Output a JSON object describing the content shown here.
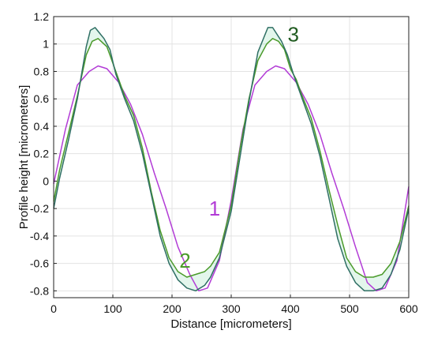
{
  "chart_data": {
    "type": "line",
    "xlabel": "Distance [micrometers]",
    "ylabel": "Profile height [micrometers]",
    "xlim": [
      0,
      600
    ],
    "ylim": [
      -0.85,
      1.2
    ],
    "grid": true,
    "x_ticks": [
      0,
      100,
      200,
      300,
      400,
      500,
      600
    ],
    "y_ticks": [
      -0.8,
      -0.6,
      -0.4,
      -0.2,
      0,
      0.2,
      0.4,
      0.6,
      0.8,
      1,
      1.2
    ],
    "annotations": [
      {
        "text": "1",
        "x": 272,
        "y": -0.25,
        "color": "#b23bd6"
      },
      {
        "text": "2",
        "x": 222,
        "y": -0.63,
        "color": "#4a9a2a"
      },
      {
        "text": "3",
        "x": 405,
        "y": 1.02,
        "color": "#1f5a1f"
      }
    ],
    "series": [
      {
        "name": "1",
        "color": "#b23bd6",
        "x": [
          0,
          20,
          40,
          60,
          75,
          90,
          110,
          130,
          150,
          170,
          190,
          210,
          230,
          245,
          260,
          280,
          300,
          320,
          340,
          360,
          375,
          390,
          410,
          430,
          450,
          470,
          490,
          510,
          530,
          545,
          560,
          580,
          600
        ],
        "y": [
          -0.02,
          0.38,
          0.7,
          0.8,
          0.84,
          0.82,
          0.72,
          0.56,
          0.34,
          0.06,
          -0.2,
          -0.48,
          -0.68,
          -0.8,
          -0.78,
          -0.58,
          -0.14,
          0.38,
          0.7,
          0.8,
          0.84,
          0.82,
          0.72,
          0.56,
          0.34,
          0.06,
          -0.2,
          -0.48,
          -0.74,
          -0.8,
          -0.78,
          -0.58,
          -0.04
        ]
      },
      {
        "name": "2",
        "color": "#4a9a2a",
        "x": [
          0,
          10,
          25,
          40,
          55,
          65,
          75,
          90,
          100,
          110,
          120,
          135,
          150,
          165,
          180,
          195,
          210,
          225,
          240,
          255,
          265,
          280,
          300,
          315,
          330,
          345,
          360,
          370,
          380,
          390,
          400,
          410,
          420,
          435,
          450,
          465,
          480,
          495,
          510,
          525,
          540,
          555,
          570,
          585,
          600
        ],
        "y": [
          -0.15,
          0.08,
          0.35,
          0.62,
          0.92,
          1.02,
          1.04,
          0.98,
          0.86,
          0.74,
          0.62,
          0.48,
          0.24,
          -0.08,
          -0.36,
          -0.56,
          -0.66,
          -0.7,
          -0.68,
          -0.66,
          -0.62,
          -0.52,
          -0.18,
          0.24,
          0.6,
          0.88,
          1.0,
          1.04,
          1.02,
          0.96,
          0.82,
          0.74,
          0.62,
          0.46,
          0.22,
          -0.06,
          -0.32,
          -0.56,
          -0.66,
          -0.7,
          -0.7,
          -0.68,
          -0.6,
          -0.44,
          -0.18
        ]
      },
      {
        "name": "3",
        "color": "#2f6f64",
        "x": [
          0,
          10,
          25,
          40,
          55,
          62,
          70,
          85,
          95,
          105,
          120,
          135,
          150,
          165,
          180,
          195,
          210,
          225,
          240,
          255,
          265,
          280,
          300,
          315,
          330,
          345,
          362,
          370,
          385,
          395,
          405,
          420,
          435,
          450,
          465,
          480,
          495,
          510,
          525,
          540,
          555,
          570,
          585,
          600
        ],
        "y": [
          -0.2,
          0.02,
          0.3,
          0.6,
          0.98,
          1.1,
          1.12,
          1.04,
          0.96,
          0.78,
          0.6,
          0.44,
          0.2,
          -0.1,
          -0.4,
          -0.6,
          -0.72,
          -0.78,
          -0.8,
          -0.76,
          -0.7,
          -0.56,
          -0.22,
          0.18,
          0.58,
          0.94,
          1.12,
          1.12,
          1.02,
          0.92,
          0.78,
          0.6,
          0.42,
          0.18,
          -0.12,
          -0.42,
          -0.62,
          -0.74,
          -0.8,
          -0.8,
          -0.78,
          -0.68,
          -0.5,
          -0.2
        ]
      }
    ]
  }
}
